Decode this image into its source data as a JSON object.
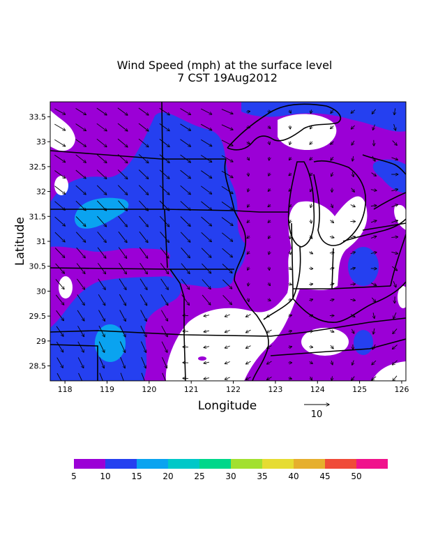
{
  "title": {
    "line1": "Wind Speed (mph) at the surface level",
    "line2": "7 CST 19Aug2012"
  },
  "chart_data": {
    "type": "heatmap",
    "xlabel": "Longitude",
    "ylabel": "Latitude",
    "x_ticks": [
      "118",
      "119",
      "120",
      "121",
      "122",
      "123",
      "124",
      "125",
      "126"
    ],
    "y_ticks": [
      "33.5",
      "33",
      "32.5",
      "32",
      "31.5",
      "31",
      "30.5",
      "30",
      "29.5",
      "29",
      "28.5"
    ],
    "xlim": [
      117.65,
      126.1
    ],
    "ylim": [
      28.2,
      33.8
    ],
    "reference_vector": {
      "label": "10",
      "units": "mph"
    },
    "legend": {
      "labels": [
        "5",
        "10",
        "15",
        "20",
        "25",
        "30",
        "35",
        "40",
        "45",
        "50"
      ],
      "colors": [
        "#9b00d6",
        "#2540f0",
        "#0aa3f0",
        "#00c8c8",
        "#00d78a",
        "#a2e030",
        "#e6dc32",
        "#e6af2d",
        "#f04b38",
        "#f0138c"
      ],
      "below_min_color": "#ffffff"
    },
    "regions": [
      {
        "level": "5-10",
        "description": "background over most of domain"
      },
      {
        "level": "10-15",
        "description": "band from northwest plains through upper Midwest"
      },
      {
        "level": "15-20",
        "description": "local maxima near 118.6E 31.4 and 119.1E 28.9"
      },
      {
        "level": "<5",
        "description": "calm areas over lake region, south-central and far northwest"
      }
    ]
  }
}
